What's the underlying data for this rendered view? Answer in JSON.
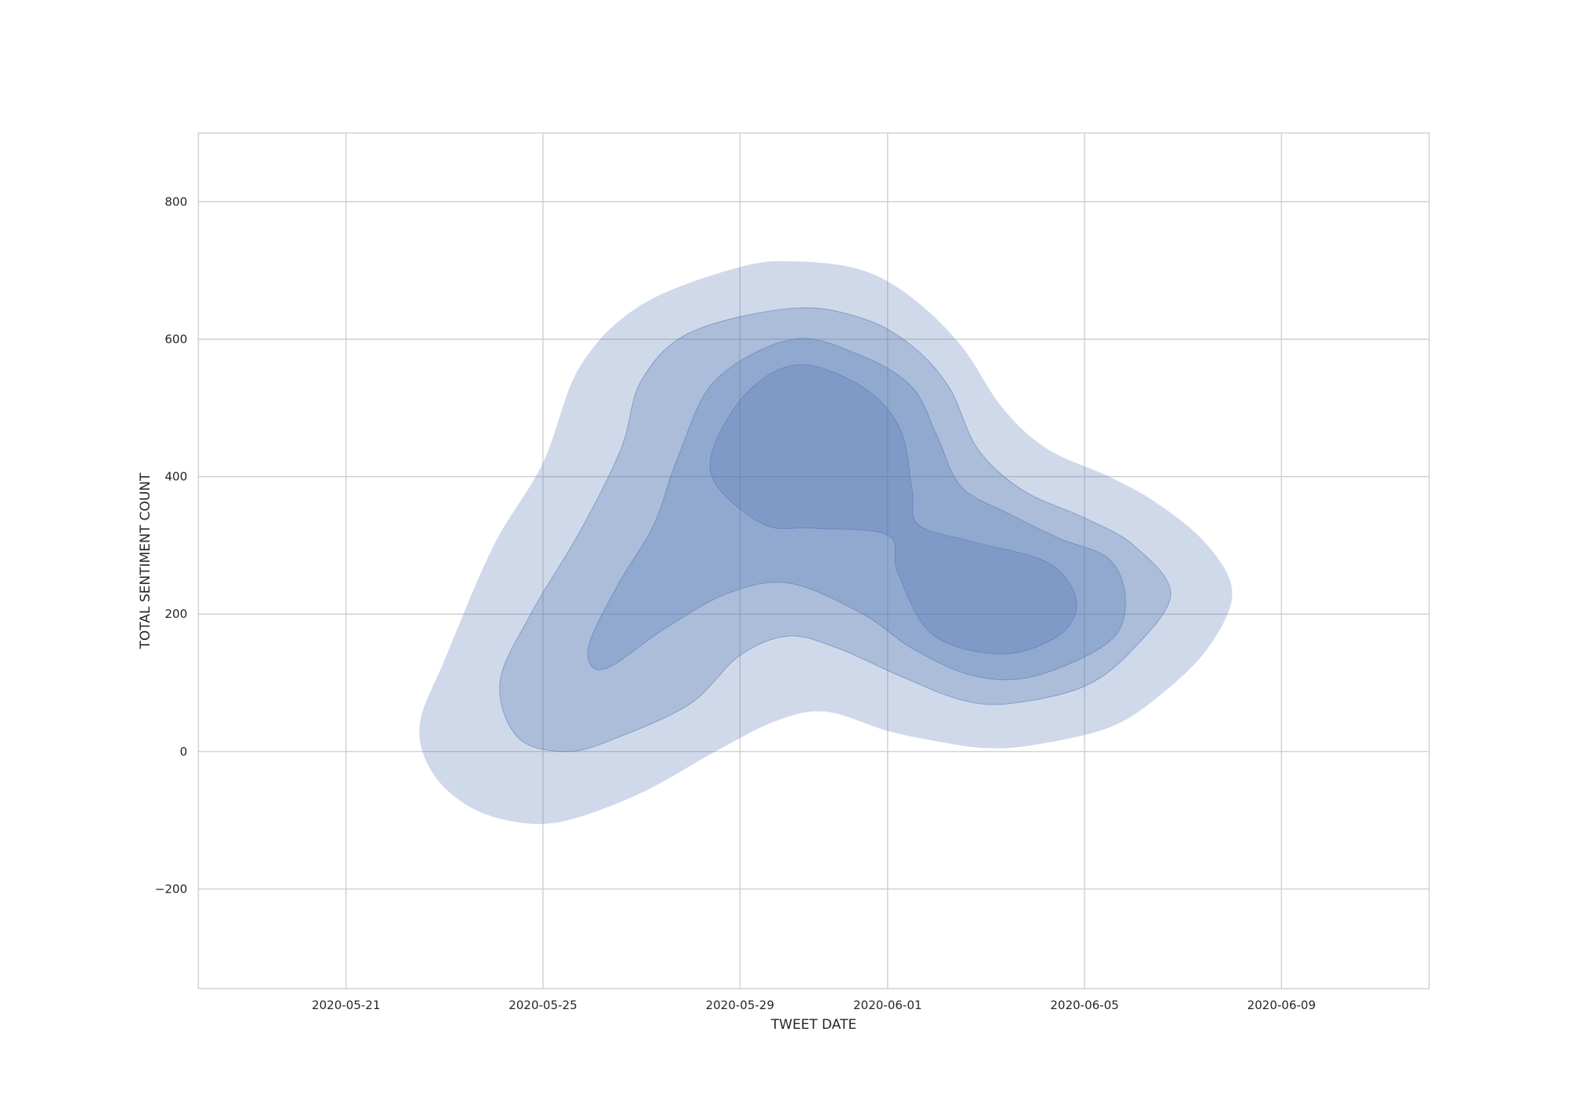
{
  "chart_data": {
    "type": "kde-contour",
    "title": "",
    "xlabel": "TWEET DATE",
    "ylabel": "TOTAL SENTIMENT COUNT",
    "x_axis_type": "date",
    "xlim": [
      "2020-05-18",
      "2020-06-12"
    ],
    "ylim": [
      -345,
      900
    ],
    "xticks": [
      {
        "value": "2020-05-21",
        "label": "2020-05-21"
      },
      {
        "value": "2020-05-25",
        "label": "2020-05-25"
      },
      {
        "value": "2020-05-29",
        "label": "2020-05-29"
      },
      {
        "value": "2020-06-01",
        "label": "2020-06-01"
      },
      {
        "value": "2020-06-05",
        "label": "2020-06-05"
      },
      {
        "value": "2020-06-09",
        "label": "2020-06-09"
      }
    ],
    "yticks": [
      {
        "value": -200,
        "label": "−200"
      },
      {
        "value": 0,
        "label": "0"
      },
      {
        "value": 200,
        "label": "200"
      },
      {
        "value": 400,
        "label": "400"
      },
      {
        "value": 600,
        "label": "600"
      },
      {
        "value": 800,
        "label": "800"
      }
    ],
    "grid": true,
    "fill_color": "#4c72b0",
    "fill_opacity": 0.27,
    "legend": "none",
    "levels": [
      {
        "level": 1,
        "points": [
          [
            "2020-05-22T12:00",
            40
          ],
          [
            "2020-05-23T01:00",
            140
          ],
          [
            "2020-05-24T00:00",
            300
          ],
          [
            "2020-05-25T00:00",
            420
          ],
          [
            "2020-05-25T18:00",
            560
          ],
          [
            "2020-05-27T00:00",
            650
          ],
          [
            "2020-05-29T00:00",
            705
          ],
          [
            "2020-05-30T05:00",
            713
          ],
          [
            "2020-05-31T12:00",
            700
          ],
          [
            "2020-06-01T12:00",
            660
          ],
          [
            "2020-06-02T12:00",
            590
          ],
          [
            "2020-06-03T08:00",
            500
          ],
          [
            "2020-06-04T06:00",
            440
          ],
          [
            "2020-06-05T12:00",
            400
          ],
          [
            "2020-06-06T12:00",
            360
          ],
          [
            "2020-06-07T12:00",
            300
          ],
          [
            "2020-06-08T00:00",
            230
          ],
          [
            "2020-06-07T12:00",
            150
          ],
          [
            "2020-06-06T12:00",
            80
          ],
          [
            "2020-06-05T12:00",
            35
          ],
          [
            "2020-06-04T00:00",
            10
          ],
          [
            "2020-06-03T00:00",
            5
          ],
          [
            "2020-06-02T00:00",
            15
          ],
          [
            "2020-06-01T00:00",
            30
          ],
          [
            "2020-05-30T18:00",
            58
          ],
          [
            "2020-05-29T18:00",
            45
          ],
          [
            "2020-05-28T12:00",
            0
          ],
          [
            "2020-05-27T00:00",
            -60
          ],
          [
            "2020-05-25T12:00",
            -100
          ],
          [
            "2020-05-24T12:00",
            -103
          ],
          [
            "2020-05-23T12:00",
            -80
          ],
          [
            "2020-05-22T18:00",
            -30
          ]
        ]
      },
      {
        "level": 2,
        "points": [
          [
            "2020-05-24T03:00",
            100
          ],
          [
            "2020-05-24T18:00",
            200
          ],
          [
            "2020-05-25T18:00",
            320
          ],
          [
            "2020-05-26T14:00",
            440
          ],
          [
            "2020-05-27T00:00",
            540
          ],
          [
            "2020-05-28T00:00",
            610
          ],
          [
            "2020-05-30T02:00",
            645
          ],
          [
            "2020-05-31T12:00",
            630
          ],
          [
            "2020-06-01T12:00",
            590
          ],
          [
            "2020-06-02T06:00",
            530
          ],
          [
            "2020-06-02T20:00",
            440
          ],
          [
            "2020-06-03T18:00",
            380
          ],
          [
            "2020-06-05T00:00",
            340
          ],
          [
            "2020-06-06T00:00",
            300
          ],
          [
            "2020-06-06T18:00",
            230
          ],
          [
            "2020-06-06T00:00",
            150
          ],
          [
            "2020-06-05T00:00",
            95
          ],
          [
            "2020-06-03T12:00",
            70
          ],
          [
            "2020-06-02T12:00",
            75
          ],
          [
            "2020-06-01T06:00",
            110
          ],
          [
            "2020-05-31T00:00",
            150
          ],
          [
            "2020-05-30T00:00",
            168
          ],
          [
            "2020-05-29T00:00",
            140
          ],
          [
            "2020-05-28T00:00",
            70
          ],
          [
            "2020-05-26T12:00",
            20
          ],
          [
            "2020-05-25T12:00",
            0
          ],
          [
            "2020-05-24T12:00",
            20
          ]
        ]
      },
      {
        "level": 3,
        "points": [
          [
            "2020-05-25T22:00",
            150
          ],
          [
            "2020-05-26T12:00",
            240
          ],
          [
            "2020-05-27T06:00",
            330
          ],
          [
            "2020-05-27T18:00",
            430
          ],
          [
            "2020-05-28T12:00",
            540
          ],
          [
            "2020-05-30T02:00",
            600
          ],
          [
            "2020-05-31T12:00",
            575
          ],
          [
            "2020-06-01T12:00",
            530
          ],
          [
            "2020-06-02T00:00",
            460
          ],
          [
            "2020-06-02T12:00",
            385
          ],
          [
            "2020-06-03T12:00",
            345
          ],
          [
            "2020-06-04T12:00",
            310
          ],
          [
            "2020-06-05T12:00",
            280
          ],
          [
            "2020-06-05T20:00",
            220
          ],
          [
            "2020-06-05T12:00",
            160
          ],
          [
            "2020-06-04T00:00",
            110
          ],
          [
            "2020-06-02T18:00",
            110
          ],
          [
            "2020-06-01T12:00",
            150
          ],
          [
            "2020-05-31T12:00",
            200
          ],
          [
            "2020-05-30T00:00",
            245
          ],
          [
            "2020-05-28T18:00",
            230
          ],
          [
            "2020-05-27T12:00",
            180
          ],
          [
            "2020-05-26T06:00",
            120
          ]
        ]
      },
      {
        "level": 4,
        "points": [
          [
            "2020-05-29T12:00",
            330
          ],
          [
            "2020-05-28T12:00",
            390
          ],
          [
            "2020-05-28T12:00",
            450
          ],
          [
            "2020-05-29T06:00",
            530
          ],
          [
            "2020-05-30T06:00",
            563
          ],
          [
            "2020-05-31T12:00",
            530
          ],
          [
            "2020-06-01T06:00",
            470
          ],
          [
            "2020-06-01T12:00",
            380
          ],
          [
            "2020-06-01T15:00",
            330
          ],
          [
            "2020-06-02T18:00",
            305
          ],
          [
            "2020-06-04T06:00",
            275
          ],
          [
            "2020-06-04T20:00",
            220
          ],
          [
            "2020-06-04T12:00",
            170
          ],
          [
            "2020-06-03T08:00",
            142
          ],
          [
            "2020-06-01T22:00",
            170
          ],
          [
            "2020-06-01T05:00",
            260
          ],
          [
            "2020-06-01T00:00",
            315
          ],
          [
            "2020-05-30T12:00",
            325
          ]
        ]
      }
    ]
  }
}
